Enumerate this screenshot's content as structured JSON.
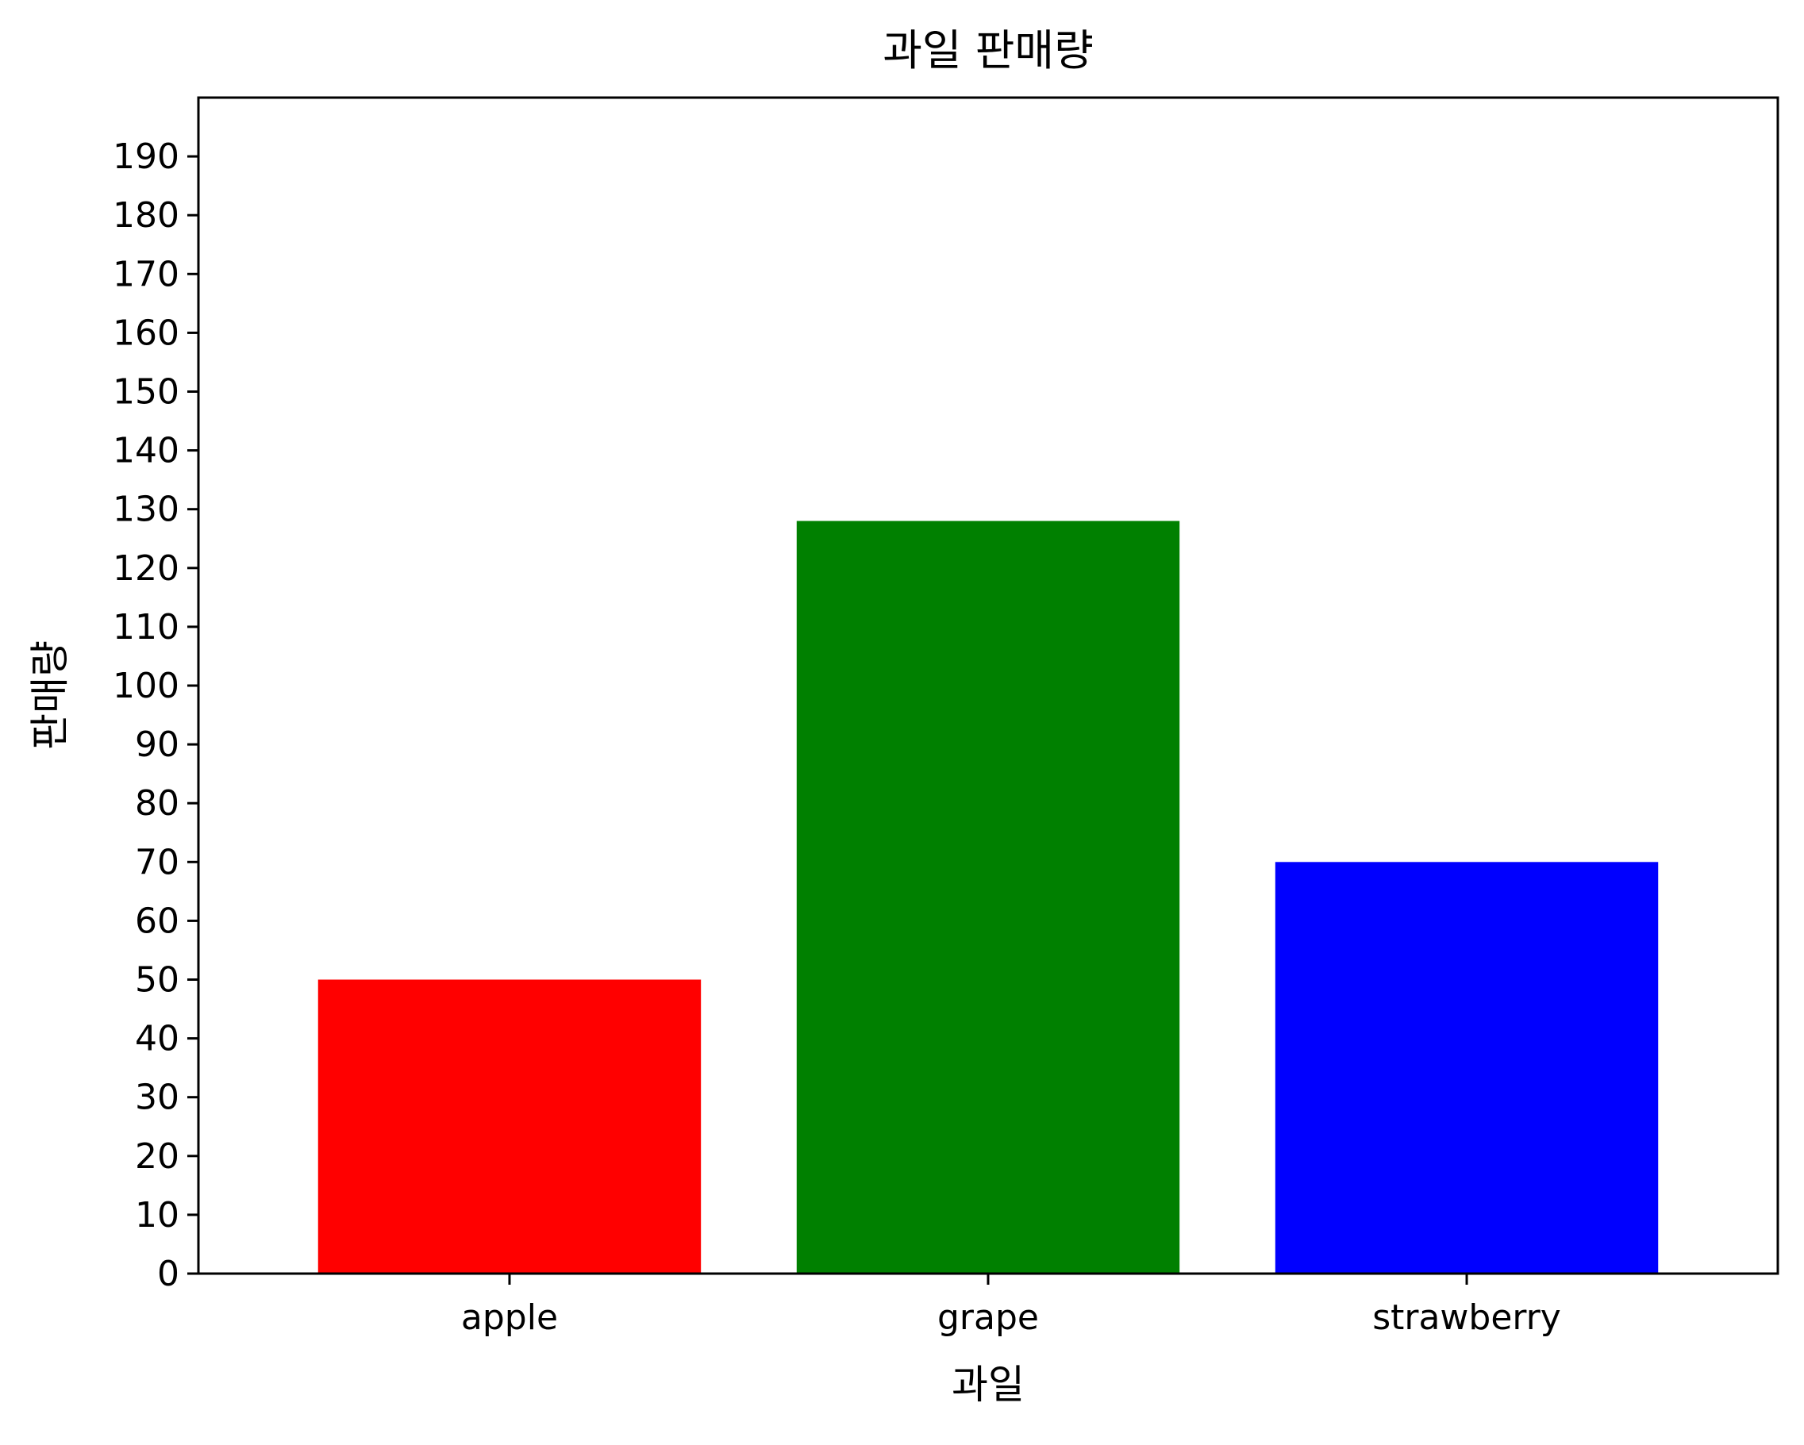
{
  "chart_data": {
    "type": "bar",
    "title": "과일 판매량",
    "xlabel": "과일",
    "ylabel": "판매량",
    "categories": [
      "apple",
      "grape",
      "strawberry"
    ],
    "values": [
      50,
      128,
      70
    ],
    "colors": [
      "#ff0000",
      "#008000",
      "#0000ff"
    ],
    "ylim": [
      0,
      200
    ],
    "yticks": [
      0,
      10,
      20,
      30,
      40,
      50,
      60,
      70,
      80,
      90,
      100,
      110,
      120,
      130,
      140,
      150,
      160,
      170,
      180,
      190
    ],
    "grid": false,
    "legend": "none"
  }
}
